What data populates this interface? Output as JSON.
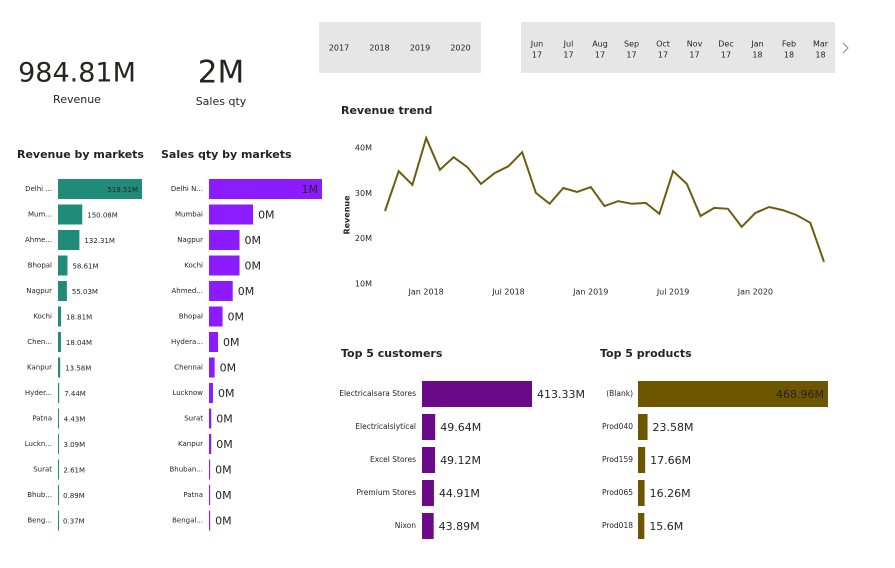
{
  "kpis": [
    {
      "value": "984.81M",
      "label": "Revenue"
    },
    {
      "value": "2M",
      "label": "Sales qty"
    }
  ],
  "slicers": {
    "years": [
      "2017",
      "2018",
      "2019",
      "2020"
    ],
    "months": [
      {
        "month": "Jun",
        "year": "17"
      },
      {
        "month": "Jul",
        "year": "17"
      },
      {
        "month": "Aug",
        "year": "17"
      },
      {
        "month": "Sep",
        "year": "17"
      },
      {
        "month": "Oct",
        "year": "17"
      },
      {
        "month": "Nov",
        "year": "17"
      },
      {
        "month": "Dec",
        "year": "17"
      },
      {
        "month": "Jan",
        "year": "18"
      },
      {
        "month": "Feb",
        "year": "18"
      },
      {
        "month": "Mar",
        "year": "18"
      }
    ]
  },
  "chart_data": [
    {
      "type": "barh",
      "title": "Revenue by markets",
      "color": "#218b7a",
      "categories": [
        "Delhi ...",
        "Mum...",
        "Ahme...",
        "Bhopal",
        "Nagpur",
        "Kochi",
        "Chen...",
        "Kanpur",
        "Hyder...",
        "Patna",
        "Luckn...",
        "Surat",
        "Bhub...",
        "Beng..."
      ],
      "values": [
        519.51,
        150.08,
        132.31,
        58.61,
        55.03,
        18.81,
        18.04,
        13.58,
        7.44,
        4.43,
        3.09,
        2.61,
        0.89,
        0.37
      ],
      "value_labels": [
        "519.51M",
        "150.08M",
        "132.31M",
        "58.61M",
        "55.03M",
        "18.81M",
        "18.04M",
        "13.58M",
        "7.44M",
        "4.43M",
        "3.09M",
        "2.61M",
        "0.89M",
        "0.37M"
      ]
    },
    {
      "type": "barh",
      "title": "Sales qty by markets",
      "color": "#8c1cff",
      "categories": [
        "Delhi N...",
        "Mumbai",
        "Nagpur",
        "Kochi",
        "Ahmed...",
        "Bhopal",
        "Hydera...",
        "Chennai",
        "Lucknow",
        "Surat",
        "Kanpur",
        "Bhuban...",
        "Patna",
        "Bengal..."
      ],
      "values": [
        1,
        0.39,
        0.27,
        0.27,
        0.21,
        0.12,
        0.08,
        0.05,
        0.035,
        0.02,
        0.02,
        0.01,
        0.01,
        0.01
      ],
      "value_labels": [
        "1M",
        "0M",
        "0M",
        "0M",
        "0M",
        "0M",
        "0M",
        "0M",
        "0M",
        "0M",
        "0M",
        "0M",
        "0M",
        "0M"
      ]
    },
    {
      "type": "line",
      "title": "Revenue trend",
      "y_label": "Revenue",
      "color": "#6e5c0e",
      "x": [
        "2017-10",
        "2017-11",
        "2017-12",
        "2018-01",
        "2018-02",
        "2018-03",
        "2018-04",
        "2018-05",
        "2018-06",
        "2018-07",
        "2018-08",
        "2018-09",
        "2018-10",
        "2018-11",
        "2018-12",
        "2019-01",
        "2019-02",
        "2019-03",
        "2019-04",
        "2019-05",
        "2019-06",
        "2019-07",
        "2019-08",
        "2019-09",
        "2019-10",
        "2019-11",
        "2019-12",
        "2020-01",
        "2020-02",
        "2020-03",
        "2020-04",
        "2020-05",
        "2020-06"
      ],
      "values": [
        26.1,
        34.9,
        31.9,
        42.2,
        35.2,
        38.0,
        35.8,
        32.1,
        34.5,
        36.0,
        39.1,
        30.1,
        27.7,
        31.2,
        30.3,
        31.4,
        27.2,
        28.3,
        27.7,
        27.9,
        25.5,
        34.9,
        32.1,
        25.0,
        26.8,
        26.6,
        22.6,
        25.7,
        27.0,
        26.3,
        25.2,
        23.5,
        14.9
      ],
      "xlim": [
        "2017-10",
        "2020-06"
      ],
      "xticks": [
        {
          "value": "2018-01",
          "label": "Jan 2018"
        },
        {
          "value": "2018-07",
          "label": "Jul 2018"
        },
        {
          "value": "2019-01",
          "label": "Jan 2019"
        },
        {
          "value": "2019-07",
          "label": "Jul 2019"
        },
        {
          "value": "2020-01",
          "label": "Jan 2020"
        }
      ],
      "ylim": [
        8,
        44
      ],
      "yticks": [
        {
          "value": 10,
          "label": "10M"
        },
        {
          "value": 20,
          "label": "20M"
        },
        {
          "value": 30,
          "label": "30M"
        },
        {
          "value": 40,
          "label": "40M"
        }
      ]
    },
    {
      "type": "barh",
      "title": "Top 5 customers",
      "color": "#6b0a88",
      "categories": [
        "Electricalsara Stores",
        "Electricalslytical",
        "Excel Stores",
        "Premium Stores",
        "Nixon"
      ],
      "values": [
        413.33,
        49.64,
        49.12,
        44.91,
        43.89
      ],
      "value_labels": [
        "413.33M",
        "49.64M",
        "49.12M",
        "44.91M",
        "43.89M"
      ]
    },
    {
      "type": "barh",
      "title": "Top 5 products",
      "color": "#6e5600",
      "categories": [
        "(Blank)",
        "Prod040",
        "Prod159",
        "Prod065",
        "Prod018"
      ],
      "values": [
        468.96,
        23.58,
        17.66,
        16.26,
        15.6
      ],
      "value_labels": [
        "468.96M",
        "23.58M",
        "17.66M",
        "16.26M",
        "15.6M"
      ]
    }
  ]
}
